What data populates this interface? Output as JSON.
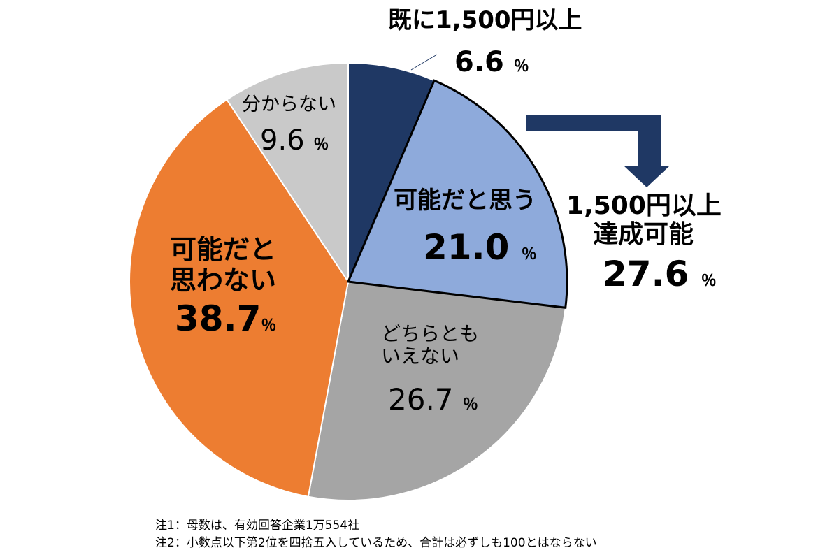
{
  "chart_data": {
    "type": "pie",
    "title": "",
    "start_angle_deg": 0,
    "direction": "clockwise",
    "slices": [
      {
        "label": "既に1,500円以上",
        "value": 6.6,
        "color": "#1f3864"
      },
      {
        "label": "可能だと思う",
        "value": 21.0,
        "color": "#8eaadb"
      },
      {
        "label": "どちらとも いえない",
        "value": 26.7,
        "color": "#a5a5a5"
      },
      {
        "label": "可能だと 思わない",
        "value": 38.7,
        "color": "#ed7d31"
      },
      {
        "label": "分からない",
        "value": 9.6,
        "color": "#c9c9c9"
      }
    ],
    "annotation": {
      "line1": "1,500円以上",
      "line2": "達成可能",
      "value": "27.6",
      "arrow_color": "#1f3864"
    }
  },
  "labels": {
    "already": {
      "text": "既に1,500円以上",
      "value": "6.6",
      "unit": "％"
    },
    "possible": {
      "text": "可能だと思う",
      "value": "21.0",
      "unit": "％"
    },
    "neither": {
      "line1": "どちらとも",
      "line2": "いえない",
      "value": "26.7",
      "unit": "％"
    },
    "notpossible": {
      "line1": "可能だと",
      "line2": "思わない",
      "value": "38.7",
      "unit": "％"
    },
    "unknown": {
      "text": "分からない",
      "value": "9.6",
      "unit": "％"
    },
    "achievable": {
      "unit": "％"
    }
  },
  "notes": [
    "注1：母数は、有効回答企業1万554社",
    "注2：小数点以下第2位を四捨五入しているため、合計は必ずしも100とはならない"
  ]
}
